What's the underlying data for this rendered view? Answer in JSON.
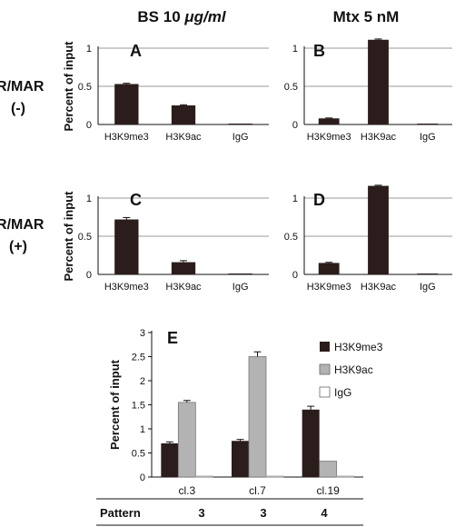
{
  "columns": {
    "left_title_prefix": "BS 10 ",
    "left_title_unit": "μg/ml",
    "right_title": "Mtx 5 nM"
  },
  "rows": [
    {
      "label_line1": "IR/MAR",
      "label_line2": "(-)"
    },
    {
      "label_line1": "IR/MAR",
      "label_line2": "(+)"
    }
  ],
  "colors": {
    "dark": "#2b1d1b",
    "gray": "#b3b3b3",
    "white": "#ffffff",
    "grid": "#9a9a9a"
  },
  "chart_data": [
    {
      "panel": "A",
      "type": "bar",
      "categories": [
        "H3K9me3",
        "H3K9ac",
        "IgG"
      ],
      "values": [
        0.53,
        0.25,
        0.005
      ],
      "errors": [
        0.01,
        0.008,
        0.0
      ],
      "ylabel": "Percent of input",
      "ylim": [
        0,
        1
      ],
      "yticks": [
        "0",
        "0.5",
        "1"
      ],
      "grid": true
    },
    {
      "panel": "B",
      "type": "bar",
      "categories": [
        "H3K9me3",
        "H3K9ac",
        "IgG"
      ],
      "values": [
        0.08,
        1.11,
        0.005
      ],
      "errors": [
        0.005,
        0.01,
        0.0
      ],
      "ylabel": "",
      "ylim": [
        0,
        1
      ],
      "yticks": [
        "0",
        "0.5",
        "1"
      ],
      "grid": true
    },
    {
      "panel": "C",
      "type": "bar",
      "categories": [
        "H3K9me3",
        "H3K9ac",
        "IgG"
      ],
      "values": [
        0.72,
        0.16,
        0.0
      ],
      "errors": [
        0.025,
        0.02,
        0.0
      ],
      "ylabel": "Percent of input",
      "ylim": [
        0,
        1
      ],
      "yticks": [
        "0",
        "0.5",
        "1"
      ],
      "grid": true
    },
    {
      "panel": "D",
      "type": "bar",
      "categories": [
        "H3K9me3",
        "H3K9ac",
        "IgG"
      ],
      "values": [
        0.15,
        1.16,
        0.01
      ],
      "errors": [
        0.008,
        0.008,
        0.0
      ],
      "ylabel": "",
      "ylim": [
        0,
        1
      ],
      "yticks": [
        "0",
        "0.5",
        "1"
      ],
      "grid": true
    },
    {
      "panel": "E",
      "type": "bar",
      "categories": [
        "cl.3",
        "cl.7",
        "cl.19"
      ],
      "series": [
        {
          "name": "H3K9me3",
          "values": [
            0.7,
            0.75,
            1.4
          ],
          "errors": [
            0.03,
            0.03,
            0.07
          ]
        },
        {
          "name": "H3K9ac",
          "values": [
            1.55,
            2.5,
            0.33
          ],
          "errors": [
            0.04,
            0.1,
            0.0
          ]
        },
        {
          "name": "IgG",
          "values": [
            0.0,
            0.0,
            0.0
          ],
          "errors": [
            0,
            0,
            0
          ]
        }
      ],
      "ylabel": "Percent of input",
      "ylim": [
        0,
        3
      ],
      "yticks": [
        "0",
        "0.5",
        "1",
        "1.5",
        "2",
        "2.5",
        "3"
      ],
      "grid": false,
      "legend": "right"
    }
  ],
  "pattern_table": {
    "label": "Pattern",
    "values": [
      "3",
      "3",
      "4"
    ]
  }
}
